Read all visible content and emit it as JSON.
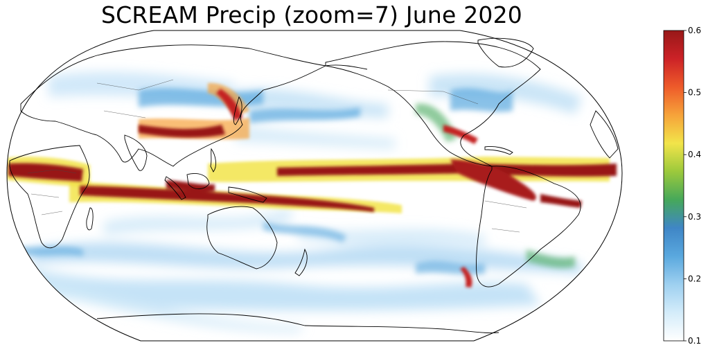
{
  "title": "SCREAM Precip (zoom=7) June 2020",
  "colorbar": {
    "min": 0.1,
    "max": 0.6,
    "ticks": [
      "0.6",
      "0.5",
      "0.4",
      "0.3",
      "0.2",
      "0.1"
    ],
    "colors": [
      "#ffffff",
      "#d4ecfa",
      "#9ed0f0",
      "#5aa8de",
      "#3f86c6",
      "#46a85a",
      "#9cc93c",
      "#f2e44a",
      "#f6a33a",
      "#ee5b2a",
      "#cc2227",
      "#981818"
    ]
  },
  "map": {
    "projection": "Robinson",
    "central_longitude": 180,
    "coastline_color": "#000000",
    "border_color": "#555555",
    "colormap": "precip"
  }
}
